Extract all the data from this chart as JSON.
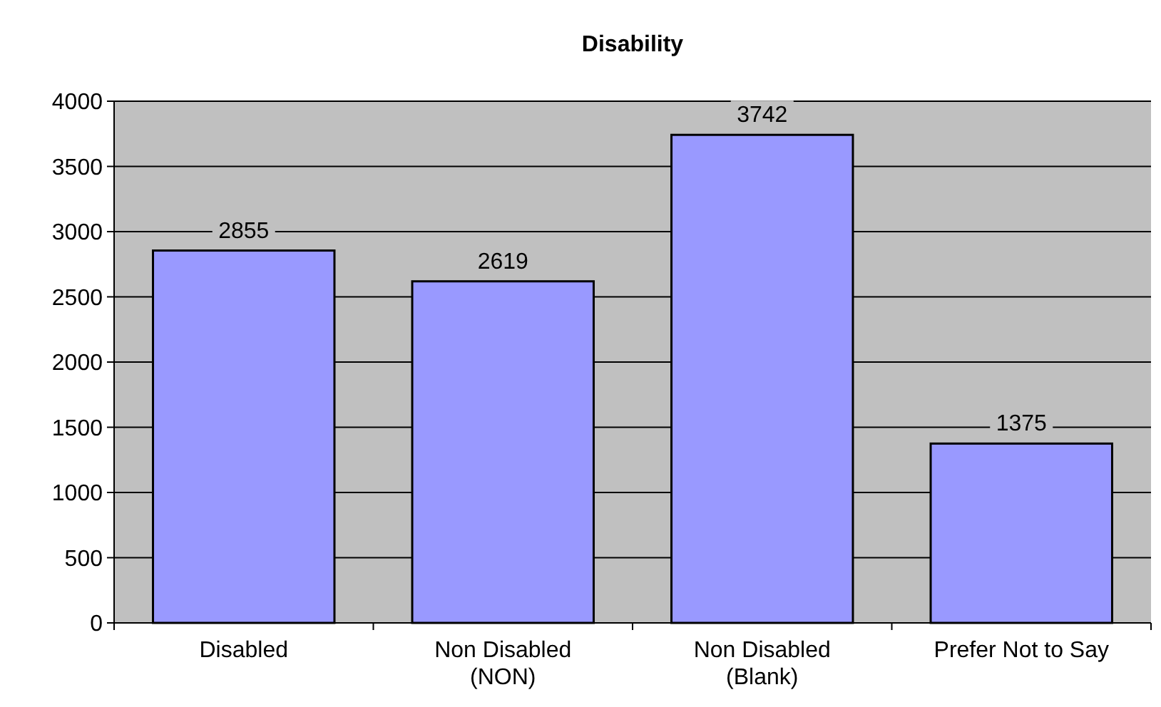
{
  "chart_data": {
    "type": "bar",
    "title": "Disability",
    "categories": [
      "Disabled",
      "Non Disabled (NON)",
      "Non Disabled (Blank)",
      "Prefer Not to Say"
    ],
    "values": [
      2855,
      2619,
      3742,
      1375
    ],
    "color": "#9999ff",
    "ylim": [
      0,
      4000
    ],
    "yticks": [
      0,
      500,
      1000,
      1500,
      2000,
      2500,
      3000,
      3500,
      4000
    ],
    "grid": "y",
    "data_labels": true
  }
}
